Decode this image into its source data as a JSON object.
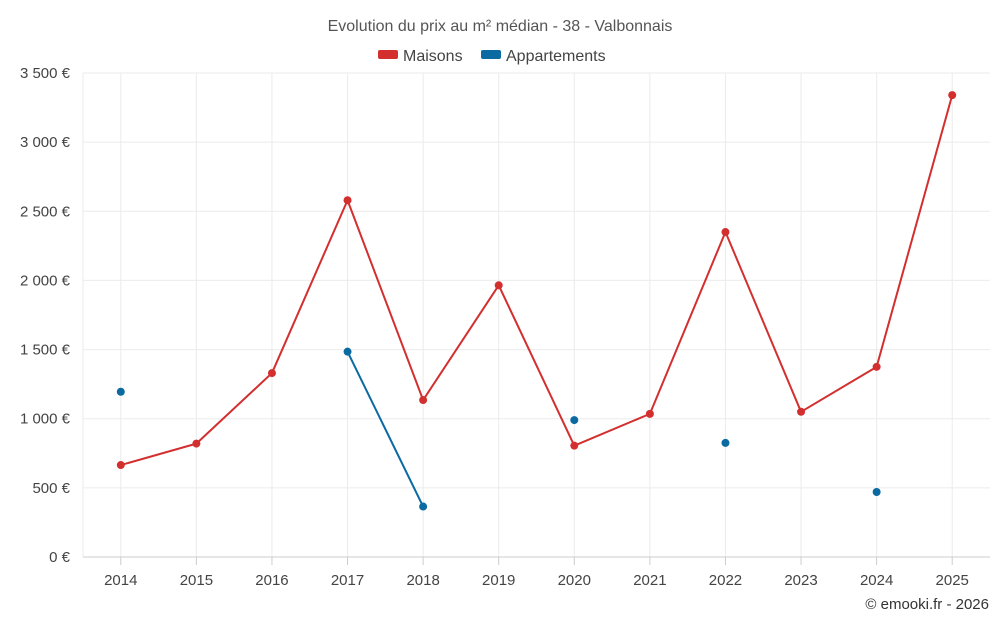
{
  "chart_data": {
    "type": "line",
    "title": "Evolution du prix au m² médian - 38 - Valbonnais",
    "categories": [
      "2014",
      "2015",
      "2016",
      "2017",
      "2018",
      "2019",
      "2020",
      "2021",
      "2022",
      "2023",
      "2024",
      "2025"
    ],
    "series": [
      {
        "name": "Maisons",
        "color": "#d32f2f",
        "values": [
          665,
          820,
          1330,
          2580,
          1135,
          1965,
          805,
          1035,
          2350,
          1050,
          1375,
          3340
        ]
      },
      {
        "name": "Appartements",
        "color": "#0a6aa1",
        "values": [
          1195,
          null,
          null,
          1485,
          365,
          null,
          990,
          null,
          825,
          null,
          470,
          null
        ]
      }
    ],
    "yticks": [
      "0 €",
      "500 €",
      "1 000 €",
      "1 500 €",
      "2 000 €",
      "2 500 €",
      "3 000 €",
      "3 500 €"
    ],
    "ylim": [
      0,
      3500
    ],
    "xlabel": "",
    "ylabel": "",
    "grid": true,
    "legend_position": "top-center"
  },
  "credit": "© emooki.fr - 2026"
}
